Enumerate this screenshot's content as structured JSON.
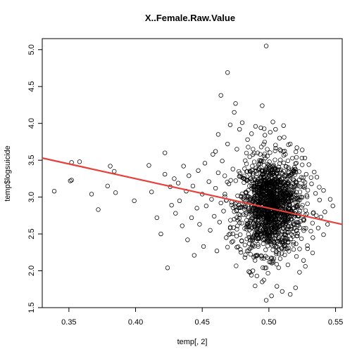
{
  "chart_data": {
    "type": "scatter",
    "title": "X..Female.Raw.Value",
    "xlabel": "temp[, 2]",
    "ylabel": "temp$logsuicide",
    "xlim": [
      0.33,
      0.555
    ],
    "ylim": [
      1.5,
      5.15
    ],
    "x_ticks": [
      "0.35",
      "0.40",
      "0.45",
      "0.50",
      "0.55"
    ],
    "y_ticks": [
      "1.5",
      "2.0",
      "2.5",
      "3.0",
      "3.5",
      "4.0",
      "4.5",
      "5.0"
    ],
    "grid": false,
    "legend": "none",
    "regression_line": {
      "x": [
        0.33,
        0.555
      ],
      "y": [
        3.53,
        2.63
      ],
      "color": "#e8403a"
    },
    "point_color": "#000000",
    "points": [
      [
        0.339,
        3.08
      ],
      [
        0.351,
        3.22
      ],
      [
        0.352,
        3.23
      ],
      [
        0.352,
        3.47
      ],
      [
        0.358,
        3.48
      ],
      [
        0.367,
        3.04
      ],
      [
        0.372,
        2.83
      ],
      [
        0.379,
        3.15
      ],
      [
        0.381,
        3.42
      ],
      [
        0.384,
        3.35
      ],
      [
        0.385,
        3.06
      ],
      [
        0.399,
        2.95
      ],
      [
        0.41,
        3.43
      ],
      [
        0.412,
        3.07
      ],
      [
        0.416,
        2.72
      ],
      [
        0.419,
        2.5
      ],
      [
        0.422,
        3.31
      ],
      [
        0.422,
        3.6
      ],
      [
        0.424,
        2.04
      ],
      [
        0.426,
        3.14
      ],
      [
        0.427,
        2.89
      ],
      [
        0.429,
        3.25
      ],
      [
        0.43,
        2.78
      ],
      [
        0.432,
        3.19
      ],
      [
        0.433,
        2.95
      ],
      [
        0.435,
        2.61
      ],
      [
        0.436,
        3.42
      ],
      [
        0.438,
        3.08
      ],
      [
        0.439,
        2.42
      ],
      [
        0.44,
        3.29
      ],
      [
        0.442,
        2.72
      ],
      [
        0.443,
        3.15
      ],
      [
        0.444,
        2.21
      ],
      [
        0.446,
        2.85
      ],
      [
        0.447,
        3.36
      ],
      [
        0.448,
        2.63
      ],
      [
        0.45,
        3.04
      ],
      [
        0.451,
        2.33
      ],
      [
        0.452,
        3.46
      ],
      [
        0.453,
        2.88
      ],
      [
        0.455,
        3.21
      ],
      [
        0.456,
        2.55
      ],
      [
        0.457,
        2.97
      ],
      [
        0.458,
        3.58
      ],
      [
        0.459,
        2.74
      ],
      [
        0.46,
        3.12
      ],
      [
        0.461,
        2.27
      ],
      [
        0.462,
        3.33
      ],
      [
        0.463,
        2.66
      ],
      [
        0.464,
        2.92
      ],
      [
        0.465,
        3.49
      ],
      [
        0.466,
        2.81
      ],
      [
        0.467,
        3.04
      ],
      [
        0.468,
        2.45
      ],
      [
        0.469,
        3.72
      ],
      [
        0.47,
        3.18
      ],
      [
        0.471,
        2.58
      ],
      [
        0.472,
        2.93
      ],
      [
        0.473,
        3.38
      ],
      [
        0.474,
        2.7
      ],
      [
        0.46,
        3.62
      ],
      [
        0.462,
        3.85
      ],
      [
        0.464,
        4.38
      ],
      [
        0.469,
        4.69
      ],
      [
        0.471,
        3.98
      ],
      [
        0.474,
        4.15
      ],
      [
        0.475,
        4.27
      ],
      [
        0.476,
        3.65
      ],
      [
        0.478,
        3.92
      ],
      [
        0.48,
        4.01
      ],
      [
        0.484,
        3.78
      ],
      [
        0.487,
        3.86
      ],
      [
        0.49,
        3.96
      ],
      [
        0.494,
        3.94
      ],
      [
        0.495,
        4.24
      ],
      [
        0.497,
        3.84
      ],
      [
        0.498,
        5.05
      ],
      [
        0.501,
        3.88
      ],
      [
        0.503,
        4.02
      ],
      [
        0.505,
        3.92
      ],
      [
        0.508,
        3.8
      ],
      [
        0.511,
        3.97
      ],
      [
        0.516,
        3.72
      ],
      [
        0.521,
        3.67
      ],
      [
        0.525,
        3.64
      ],
      [
        0.528,
        3.31
      ],
      [
        0.532,
        3.18
      ],
      [
        0.535,
        3.05
      ],
      [
        0.538,
        2.96
      ],
      [
        0.541,
        3.09
      ],
      [
        0.546,
        2.97
      ],
      [
        0.548,
        2.88
      ],
      [
        0.537,
        2.58
      ],
      [
        0.533,
        2.45
      ],
      [
        0.529,
        2.3
      ],
      [
        0.526,
        2.14
      ],
      [
        0.523,
        1.98
      ],
      [
        0.52,
        1.77
      ],
      [
        0.516,
        1.68
      ],
      [
        0.51,
        1.72
      ],
      [
        0.506,
        1.79
      ],
      [
        0.502,
        1.66
      ],
      [
        0.498,
        1.6
      ],
      [
        0.495,
        1.85
      ],
      [
        0.491,
        1.93
      ],
      [
        0.488,
        2.0
      ],
      [
        0.485,
        1.99
      ],
      [
        0.482,
        2.18
      ],
      [
        0.479,
        2.25
      ],
      [
        0.476,
        2.32
      ],
      [
        0.473,
        2.4
      ],
      [
        0.47,
        2.49
      ],
      [
        0.541,
        2.49
      ],
      [
        0.544,
        2.63
      ],
      [
        0.539,
        2.73
      ],
      [
        0.542,
        2.8
      ],
      [
        0.536,
        3.27
      ],
      [
        0.534,
        3.34
      ],
      [
        0.53,
        3.44
      ],
      [
        0.527,
        3.53
      ]
    ]
  }
}
